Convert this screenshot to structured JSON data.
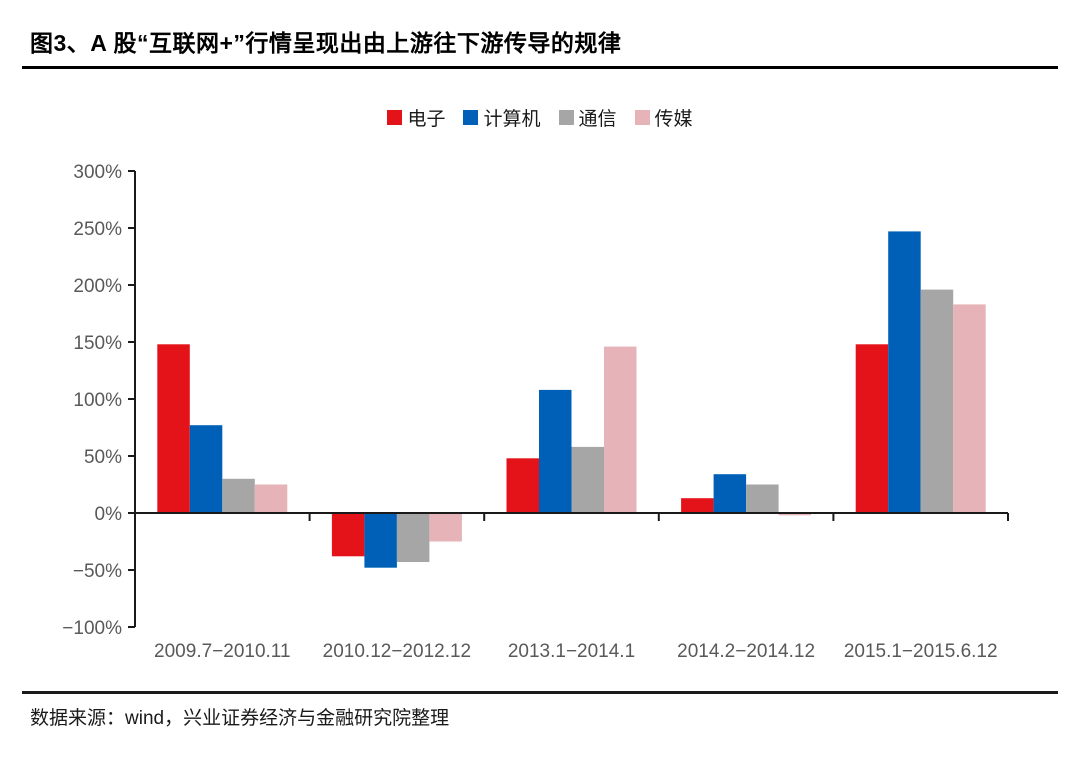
{
  "header": {
    "title": "图3、A 股“互联网+”行情呈现出由上游往下游传导的规律"
  },
  "footer": {
    "source": "数据来源：wind，兴业证券经济与金融研究院整理"
  },
  "chart_data": {
    "type": "bar",
    "title": "",
    "xlabel": "",
    "ylabel": "",
    "categories": [
      "2009.7-2010.11",
      "2010.12-2012.12",
      "2013.1-2014.1",
      "2014.2-2014.12",
      "2015.1-2015.6.12"
    ],
    "series": [
      {
        "name": "电子",
        "color": "#e41319",
        "values": [
          148,
          -38,
          48,
          13,
          148
        ]
      },
      {
        "name": "计算机",
        "color": "#0060b8",
        "values": [
          77,
          -48,
          108,
          34,
          247
        ]
      },
      {
        "name": "通信",
        "color": "#a6a6a6",
        "values": [
          30,
          -43,
          58,
          25,
          196
        ]
      },
      {
        "name": "传媒",
        "color": "#e5b3b8",
        "values": [
          25,
          -25,
          146,
          -2,
          183
        ]
      }
    ],
    "ylim": [
      -100,
      300
    ],
    "ytick_step": 50,
    "ytick_suffix": "%",
    "legend_position": "top",
    "grid": false,
    "axis_color": "#1a1a1a",
    "tick_label_color": "#595959"
  }
}
